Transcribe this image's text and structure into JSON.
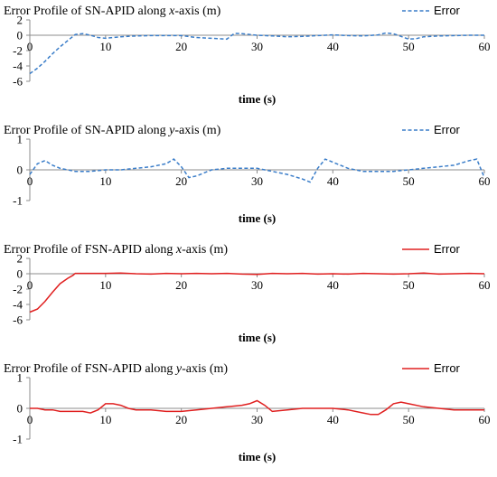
{
  "chart_data": [
    {
      "type": "line",
      "title": "Error Profile of SN-APID along x-axis (m)",
      "title_parts": [
        "Error Profile of SN-APID along ",
        "x",
        "-axis (m)"
      ],
      "xlabel": "time (s)",
      "ylabel": "",
      "xlim": [
        0,
        60
      ],
      "ylim": [
        -6,
        2
      ],
      "xticks": [
        0,
        10,
        20,
        30,
        40,
        50,
        60
      ],
      "yticks": [
        -6,
        -4,
        -2,
        0,
        2
      ],
      "legend_position": "top-right",
      "grid": false,
      "series": [
        {
          "name": "Error",
          "color": "#3a7dc9",
          "style": "dashed",
          "x": [
            0,
            1,
            2,
            3,
            4,
            5,
            6,
            7,
            8,
            9,
            10,
            12,
            14,
            16,
            18,
            20,
            22,
            24,
            26,
            27,
            28,
            30,
            32,
            34,
            36,
            38,
            40,
            42,
            44,
            46,
            47,
            48,
            50,
            51,
            52,
            54,
            56,
            58,
            60
          ],
          "y": [
            -5.0,
            -4.3,
            -3.4,
            -2.4,
            -1.5,
            -0.7,
            0.1,
            0.2,
            0.0,
            -0.3,
            -0.4,
            -0.2,
            -0.1,
            -0.05,
            -0.05,
            -0.05,
            -0.3,
            -0.4,
            -0.5,
            0.25,
            0.2,
            0.0,
            -0.1,
            -0.2,
            -0.15,
            -0.05,
            0.05,
            -0.05,
            -0.1,
            0.05,
            0.3,
            0.2,
            -0.5,
            -0.45,
            -0.2,
            -0.1,
            -0.05,
            0.0,
            0.0
          ]
        }
      ]
    },
    {
      "type": "line",
      "title": "Error Profile of SN-APID along y-axis (m)",
      "title_parts": [
        "Error Profile of SN-APID along ",
        "y",
        "-axis (m)"
      ],
      "xlabel": "time (s)",
      "ylabel": "",
      "xlim": [
        0,
        60
      ],
      "ylim": [
        -1,
        1
      ],
      "xticks": [
        0,
        10,
        20,
        30,
        40,
        50,
        60
      ],
      "yticks": [
        -1,
        0,
        1
      ],
      "legend_position": "top-right",
      "grid": false,
      "series": [
        {
          "name": "Error",
          "color": "#3a7dc9",
          "style": "dashed",
          "x": [
            0,
            1,
            2,
            3,
            4,
            6,
            8,
            10,
            12,
            14,
            16,
            18,
            19,
            20,
            21,
            22,
            24,
            26,
            28,
            30,
            32,
            34,
            36,
            37,
            38,
            39,
            40,
            42,
            44,
            46,
            48,
            50,
            52,
            54,
            56,
            58,
            59,
            60
          ],
          "y": [
            -0.15,
            0.2,
            0.3,
            0.15,
            0.05,
            -0.05,
            -0.05,
            0.0,
            0.0,
            0.05,
            0.1,
            0.2,
            0.35,
            0.1,
            -0.25,
            -0.2,
            0.0,
            0.05,
            0.05,
            0.05,
            -0.05,
            -0.15,
            -0.3,
            -0.4,
            0.05,
            0.35,
            0.25,
            0.05,
            -0.05,
            -0.05,
            -0.05,
            0.0,
            0.05,
            0.1,
            0.15,
            0.3,
            0.35,
            -0.25
          ]
        }
      ]
    },
    {
      "type": "line",
      "title": "Error Profile of FSN-APID along x-axis (m)",
      "title_parts": [
        "Error Profile of FSN-APID along ",
        "x",
        "-axis (m)"
      ],
      "xlabel": "time (s)",
      "ylabel": "",
      "xlim": [
        0,
        60
      ],
      "ylim": [
        -6,
        2
      ],
      "xticks": [
        0,
        10,
        20,
        30,
        40,
        50,
        60
      ],
      "yticks": [
        -6,
        -4,
        -2,
        0,
        2
      ],
      "legend_position": "top-right",
      "grid": false,
      "series": [
        {
          "name": "Error",
          "color": "#e02020",
          "style": "solid",
          "x": [
            0,
            1,
            2,
            3,
            4,
            5,
            5.7,
            6,
            8,
            10,
            12,
            14,
            16,
            18,
            20,
            22,
            24,
            26,
            28,
            30,
            32,
            34,
            36,
            38,
            40,
            42,
            44,
            46,
            48,
            50,
            52,
            54,
            56,
            58,
            60
          ],
          "y": [
            -5.0,
            -4.6,
            -3.6,
            -2.4,
            -1.3,
            -0.6,
            -0.2,
            0.05,
            0.05,
            0.05,
            0.1,
            0.0,
            -0.05,
            0.05,
            0.0,
            0.05,
            0.0,
            0.05,
            -0.05,
            -0.1,
            0.05,
            0.0,
            0.05,
            -0.05,
            0.0,
            -0.05,
            0.05,
            0.0,
            -0.05,
            0.0,
            0.1,
            -0.05,
            0.0,
            0.05,
            0.0
          ]
        }
      ]
    },
    {
      "type": "line",
      "title": "Error Profile of FSN-APID along y-axis (m)",
      "title_parts": [
        "Error Profile of FSN-APID along ",
        "y",
        "-axis (m)"
      ],
      "xlabel": "time (s)",
      "ylabel": "",
      "xlim": [
        0,
        60
      ],
      "ylim": [
        -1,
        1
      ],
      "xticks": [
        0,
        10,
        20,
        30,
        40,
        50,
        60
      ],
      "yticks": [
        -1,
        0,
        1
      ],
      "legend_position": "top-right",
      "grid": false,
      "series": [
        {
          "name": "Error",
          "color": "#e02020",
          "style": "solid",
          "x": [
            0,
            1,
            2,
            3,
            4,
            5,
            6,
            7,
            8,
            9,
            10,
            11,
            12,
            13,
            14,
            16,
            18,
            20,
            22,
            24,
            26,
            28,
            29,
            30,
            31,
            32,
            34,
            36,
            38,
            40,
            42,
            44,
            45,
            46,
            47,
            48,
            49,
            50,
            52,
            54,
            56,
            58,
            60
          ],
          "y": [
            0.0,
            0.0,
            -0.05,
            -0.05,
            -0.1,
            -0.1,
            -0.1,
            -0.1,
            -0.15,
            -0.05,
            0.15,
            0.15,
            0.1,
            0.0,
            -0.05,
            -0.05,
            -0.1,
            -0.1,
            -0.05,
            0.0,
            0.05,
            0.1,
            0.15,
            0.25,
            0.1,
            -0.1,
            -0.05,
            0.0,
            0.0,
            0.0,
            -0.05,
            -0.15,
            -0.2,
            -0.2,
            -0.05,
            0.15,
            0.2,
            0.15,
            0.05,
            0.0,
            -0.05,
            -0.05,
            -0.05
          ]
        }
      ]
    }
  ]
}
